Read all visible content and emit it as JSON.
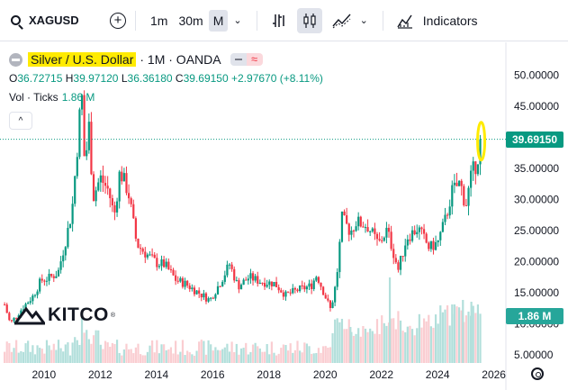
{
  "toolbar": {
    "symbol": "XAGUSD",
    "timeframes": [
      "1m",
      "30m",
      "M"
    ],
    "active_timeframe": "M",
    "indicators_label": "Indicators",
    "icons": [
      "search-icon",
      "add-symbol-icon",
      "chevron-down-icon",
      "bar-style-icon",
      "candles-icon",
      "compare-icon",
      "chevron-down-icon",
      "indicators-icon"
    ]
  },
  "legend": {
    "title": "Silver / U.S. Dollar",
    "meta": "· 1M · OANDA",
    "o_label": "O",
    "o_value": "36.72715",
    "h_label": "H",
    "h_value": "39.97120",
    "l_label": "L",
    "l_value": "36.36180",
    "c_label": "C",
    "c_value": "39.69150",
    "change": "+2.97670 (+8.11%)",
    "vol_label": "Vol · Ticks",
    "vol_value": "1.86 M"
  },
  "watermark": {
    "text": "KITCO",
    "mark": "®"
  },
  "price_tags": {
    "last": "39.69150",
    "volume": "1.86 M"
  },
  "colors": {
    "up": "#089981",
    "down": "#f23645",
    "vol_up": "#b2dfdb",
    "vol_down": "#facdd1",
    "highlight": "#ffeb00",
    "last_tag": "#089981"
  },
  "chart_data": {
    "type": "candlestick",
    "interval": "monthly",
    "y_axis_ticks": [
      50,
      45,
      40,
      35,
      30,
      25,
      20,
      15,
      10,
      5
    ],
    "y_axis_labels": [
      "50.00000",
      "45.00000",
      "35.00000",
      "30.00000",
      "25.00000",
      "20.00000",
      "15.00000",
      "10.00000",
      "5.00000"
    ],
    "ylim": [
      5,
      50
    ],
    "x_axis_labels": [
      "2010",
      "2012",
      "2014",
      "2016",
      "2018",
      "2020",
      "2022",
      "2024",
      "2026"
    ],
    "xlim": [
      2008.5,
      2026.3
    ],
    "close_series": [
      [
        2008.6,
        13.1
      ],
      [
        2008.8,
        10.0
      ],
      [
        2009.0,
        11.2
      ],
      [
        2009.3,
        12.9
      ],
      [
        2009.6,
        14.4
      ],
      [
        2009.9,
        17.0
      ],
      [
        2010.2,
        17.4
      ],
      [
        2010.5,
        18.2
      ],
      [
        2010.8,
        24.0
      ],
      [
        2011.0,
        28.3
      ],
      [
        2011.25,
        42.0
      ],
      [
        2011.33,
        48.5
      ],
      [
        2011.45,
        35.2
      ],
      [
        2011.6,
        41.7
      ],
      [
        2011.75,
        30.4
      ],
      [
        2012.0,
        33.5
      ],
      [
        2012.3,
        31.4
      ],
      [
        2012.5,
        27.3
      ],
      [
        2012.7,
        34.6
      ],
      [
        2013.0,
        31.2
      ],
      [
        2013.3,
        22.8
      ],
      [
        2013.6,
        21.4
      ],
      [
        2014.0,
        19.8
      ],
      [
        2014.3,
        19.5
      ],
      [
        2014.7,
        17.0
      ],
      [
        2015.0,
        16.5
      ],
      [
        2015.5,
        15.0
      ],
      [
        2015.9,
        13.8
      ],
      [
        2016.3,
        16.9
      ],
      [
        2016.6,
        19.6
      ],
      [
        2016.9,
        16.0
      ],
      [
        2017.3,
        17.5
      ],
      [
        2017.7,
        16.8
      ],
      [
        2018.2,
        16.5
      ],
      [
        2018.6,
        14.6
      ],
      [
        2019.0,
        15.4
      ],
      [
        2019.5,
        16.1
      ],
      [
        2019.7,
        17.9
      ],
      [
        2020.2,
        12.2
      ],
      [
        2020.4,
        16.9
      ],
      [
        2020.6,
        26.9
      ],
      [
        2020.9,
        24.8
      ],
      [
        2021.1,
        26.4
      ],
      [
        2021.5,
        25.8
      ],
      [
        2021.9,
        22.8
      ],
      [
        2022.2,
        25.1
      ],
      [
        2022.6,
        18.7
      ],
      [
        2022.9,
        23.9
      ],
      [
        2023.3,
        25.4
      ],
      [
        2023.7,
        22.2
      ],
      [
        2024.0,
        23.0
      ],
      [
        2024.3,
        27.1
      ],
      [
        2024.5,
        31.2
      ],
      [
        2024.8,
        32.7
      ],
      [
        2025.0,
        29.0
      ],
      [
        2025.2,
        33.8
      ],
      [
        2025.4,
        36.2
      ],
      [
        2025.55,
        39.69
      ]
    ],
    "last_price": 39.6915,
    "series": [
      {
        "name": "Silver / U.S. Dollar",
        "type": "candlestick"
      },
      {
        "name": "Vol · Ticks",
        "type": "volume",
        "last": "1.86 M"
      }
    ],
    "grid": false,
    "legend_placement": "top-left"
  }
}
